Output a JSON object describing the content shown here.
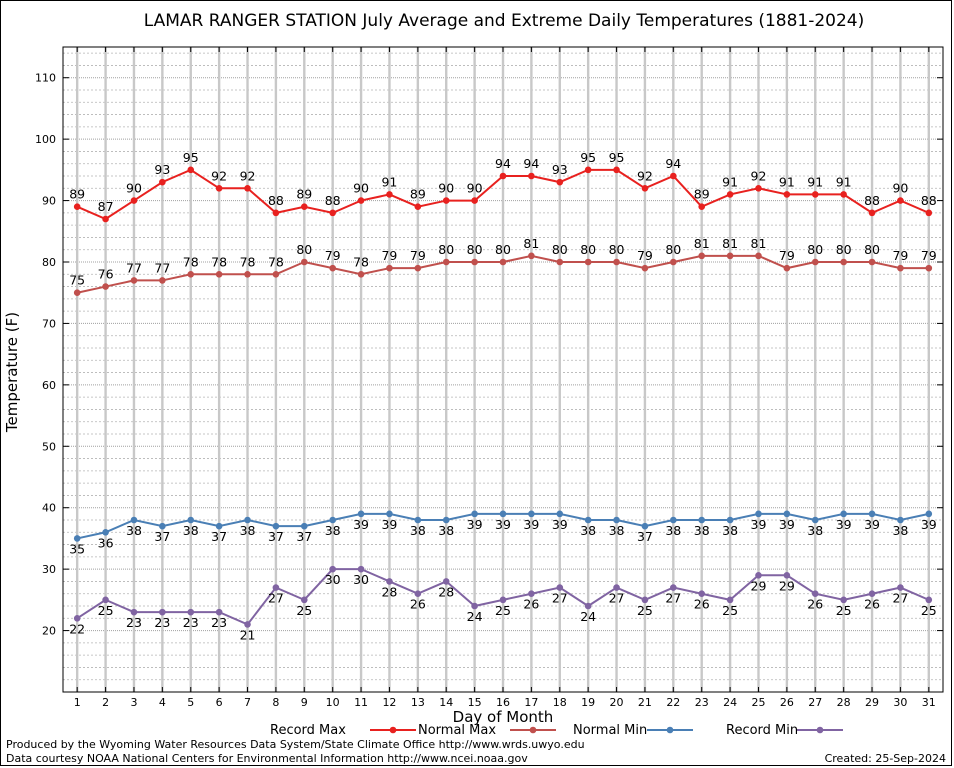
{
  "footer": {
    "produced_by": "Produced by the Wyoming Water Resources Data System/State Climate Office http://www.wrds.uwyo.edu",
    "courtesy": "Data courtesy NOAA National Centers for Environmental Information http://www.ncei.noaa.gov",
    "created": "Created:  25-Sep-2024"
  },
  "chart_data": {
    "type": "line",
    "title": "LAMAR RANGER STATION July Average and Extreme Daily Temperatures (1881-2024)",
    "xlabel": "Day of Month",
    "ylabel": "Temperature (F)",
    "xlim": [
      0.5,
      31.5
    ],
    "ylim": [
      10,
      115
    ],
    "yticks": [
      20,
      30,
      40,
      50,
      60,
      70,
      80,
      90,
      100,
      110
    ],
    "x": [
      1,
      2,
      3,
      4,
      5,
      6,
      7,
      8,
      9,
      10,
      11,
      12,
      13,
      14,
      15,
      16,
      17,
      18,
      19,
      20,
      21,
      22,
      23,
      24,
      25,
      26,
      27,
      28,
      29,
      30,
      31
    ],
    "grid": true,
    "legend_position": "bottom",
    "series": [
      {
        "name": "Record Max",
        "color": "#e8211f",
        "values": [
          89,
          87,
          90,
          93,
          95,
          92,
          92,
          88,
          89,
          88,
          90,
          91,
          89,
          90,
          90,
          94,
          94,
          93,
          95,
          95,
          92,
          94,
          89,
          91,
          92,
          91,
          91,
          91,
          88,
          90,
          88
        ]
      },
      {
        "name": "Normal Max",
        "color": "#c0504d",
        "values": [
          75,
          76,
          77,
          77,
          78,
          78,
          78,
          78,
          80,
          79,
          78,
          79,
          79,
          80,
          80,
          80,
          81,
          80,
          80,
          80,
          79,
          80,
          81,
          81,
          81,
          79,
          80,
          80,
          80,
          79,
          79
        ]
      },
      {
        "name": "Normal Min",
        "color": "#4a7fb5",
        "values": [
          35,
          36,
          38,
          37,
          38,
          37,
          38,
          37,
          37,
          38,
          39,
          39,
          38,
          38,
          39,
          39,
          39,
          39,
          38,
          38,
          37,
          38,
          38,
          38,
          39,
          39,
          38,
          39,
          39,
          38,
          39
        ]
      },
      {
        "name": "Record Min",
        "color": "#8064a2",
        "values": [
          22,
          25,
          23,
          23,
          23,
          23,
          21,
          27,
          25,
          30,
          30,
          28,
          26,
          28,
          24,
          25,
          26,
          27,
          24,
          27,
          25,
          27,
          26,
          25,
          29,
          29,
          26,
          25,
          26,
          27,
          25
        ]
      }
    ]
  }
}
